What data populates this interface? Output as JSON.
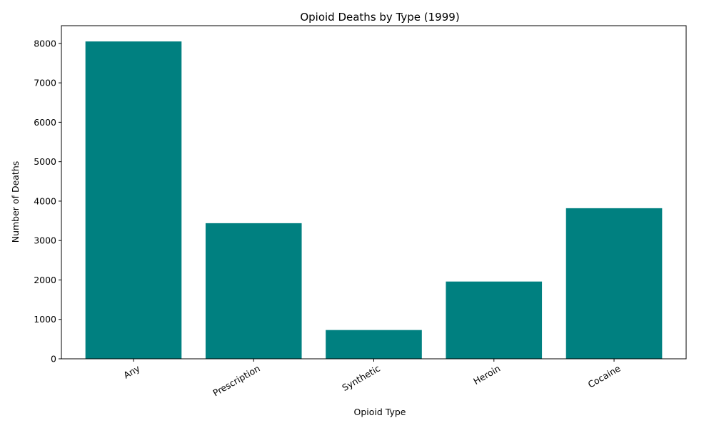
{
  "chart_data": {
    "type": "bar",
    "title": "Opioid Deaths by Type (1999)",
    "xlabel": "Opioid Type",
    "ylabel": "Number of Deaths",
    "categories": [
      "Any",
      "Prescription",
      "Synthetic",
      "Heroin",
      "Cocaine"
    ],
    "values": [
      8050,
      3440,
      730,
      1960,
      3820
    ],
    "ylim": [
      0,
      8450
    ],
    "yticks": [
      0,
      1000,
      2000,
      3000,
      4000,
      5000,
      6000,
      7000,
      8000
    ],
    "bar_color": "#008080",
    "grid": false,
    "legend": "none"
  }
}
